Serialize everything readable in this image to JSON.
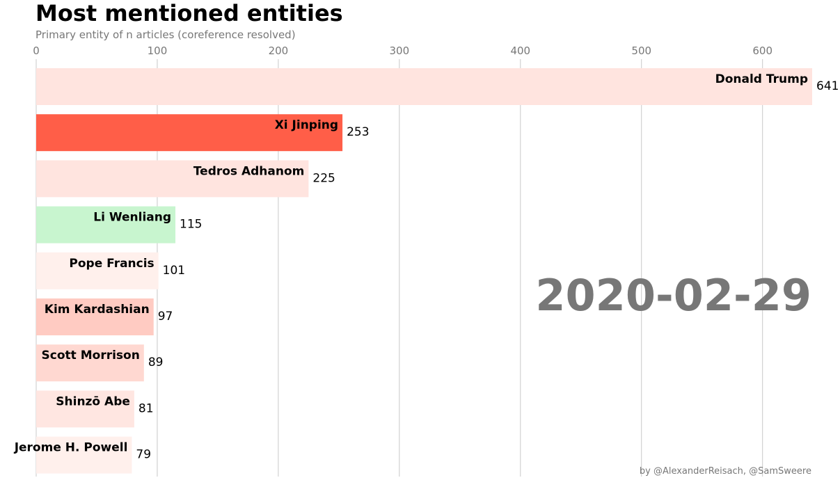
{
  "chart_data": {
    "type": "bar",
    "orientation": "horizontal",
    "title": "Most mentioned entities",
    "subtitle": "Primary entity of n articles (coreference resolved)",
    "date": "2020-02-29",
    "credit": "by @AlexanderReisach, @SamSweere",
    "xlim": [
      0,
      641
    ],
    "xticks": [
      0,
      100,
      200,
      300,
      400,
      500,
      600
    ],
    "grid": true,
    "categories": [
      "Donald Trump",
      "Xi Jinping",
      "Tedros Adhanom",
      "Li Wenliang",
      "Pope Francis",
      "Kim Kardashian",
      "Scott Morrison",
      "Shinzō Abe",
      "Jerome H. Powell"
    ],
    "values": [
      641,
      253,
      225,
      115,
      101,
      97,
      89,
      81,
      79
    ],
    "colors": [
      "#ffe4df",
      "#ff5e48",
      "#ffe4df",
      "#c8f5cf",
      "#fff0ec",
      "#ffcbc2",
      "#ffd8d1",
      "#ffe6e1",
      "#fff0ec"
    ]
  }
}
